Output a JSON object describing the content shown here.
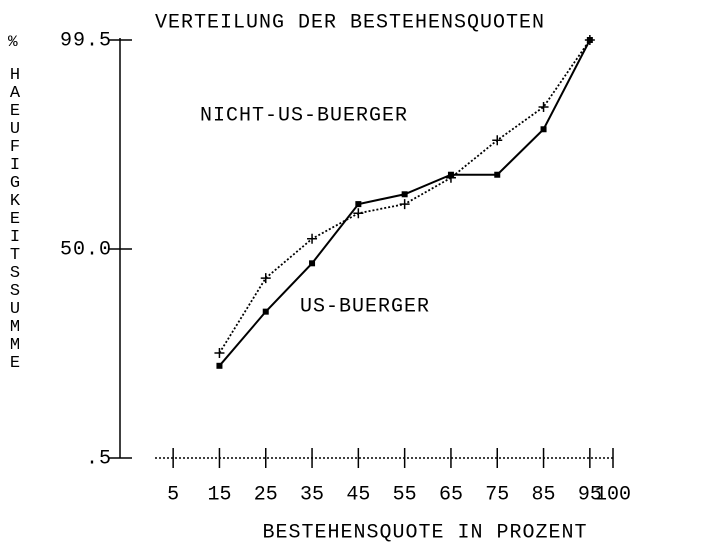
{
  "chart_data": {
    "type": "line",
    "title": "VERTEILUNG DER BESTEHENSQUOTEN",
    "x_label": "BESTEHENSQUOTE IN PROZENT",
    "y_unit": "%",
    "y_label": "HAEUFIGKEITSSUMME",
    "x": [
      15,
      25,
      35,
      45,
      55,
      65,
      75,
      85,
      95
    ],
    "series": [
      {
        "name": "US-BUERGER",
        "color": "#000000",
        "style": "solid",
        "marker": "square",
        "values": [
          7.5,
          22,
          43,
          71,
          75,
          82,
          82,
          93,
          99.5
        ]
      },
      {
        "name": "NICHT-US-BUERGER",
        "color": "#000000",
        "style": "dotted",
        "marker": "plus",
        "values": [
          10,
          36,
          55,
          67,
          71,
          81,
          91,
          96,
          99.5
        ]
      }
    ],
    "xlim": [
      0,
      100
    ],
    "xticks": [
      5,
      15,
      25,
      35,
      45,
      55,
      65,
      75,
      85,
      95,
      100
    ],
    "ylim": [
      0.5,
      99.5
    ],
    "yscale": "probability",
    "yticks": [
      {
        "value": 0.5,
        "label": ".5"
      },
      {
        "value": 50,
        "label": "50.0"
      },
      {
        "value": 99.5,
        "label": "99.5"
      }
    ]
  }
}
